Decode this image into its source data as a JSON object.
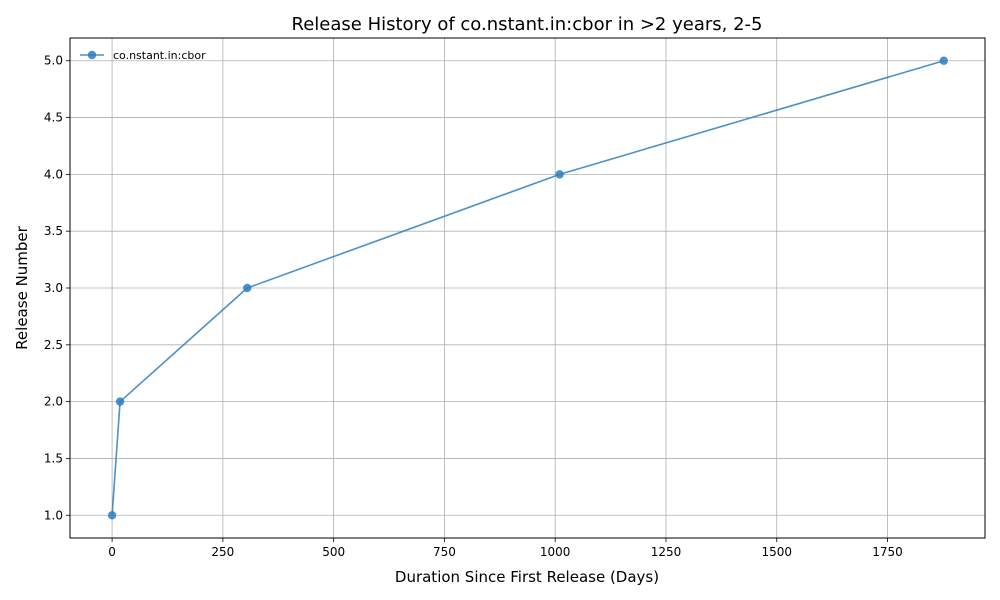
{
  "chart_data": {
    "type": "line",
    "title": "Release History of co.nstant.in:cbor in >2 years, 2-5",
    "xlabel": "Duration Since First Release (Days)",
    "ylabel": "Release Number",
    "xlim": [
      -95,
      1970
    ],
    "ylim": [
      0.8,
      5.2
    ],
    "xticks": [
      0,
      250,
      500,
      750,
      1000,
      1250,
      1500,
      1750
    ],
    "yticks": [
      1.0,
      1.5,
      2.0,
      2.5,
      3.0,
      3.5,
      4.0,
      4.5,
      5.0
    ],
    "xtick_labels": [
      "0",
      "250",
      "500",
      "750",
      "1000",
      "1250",
      "1500",
      "1750"
    ],
    "ytick_labels": [
      "1.0",
      "1.5",
      "2.0",
      "2.5",
      "3.0",
      "3.5",
      "4.0",
      "4.5",
      "5.0"
    ],
    "grid": true,
    "legend_position": "top-left",
    "series": [
      {
        "name": "co.nstant.in:cbor",
        "color": "#2e7ebc",
        "marker": "circle",
        "x": [
          0,
          18,
          305,
          1010,
          1877
        ],
        "y": [
          1,
          2,
          3,
          4,
          5
        ]
      }
    ]
  }
}
